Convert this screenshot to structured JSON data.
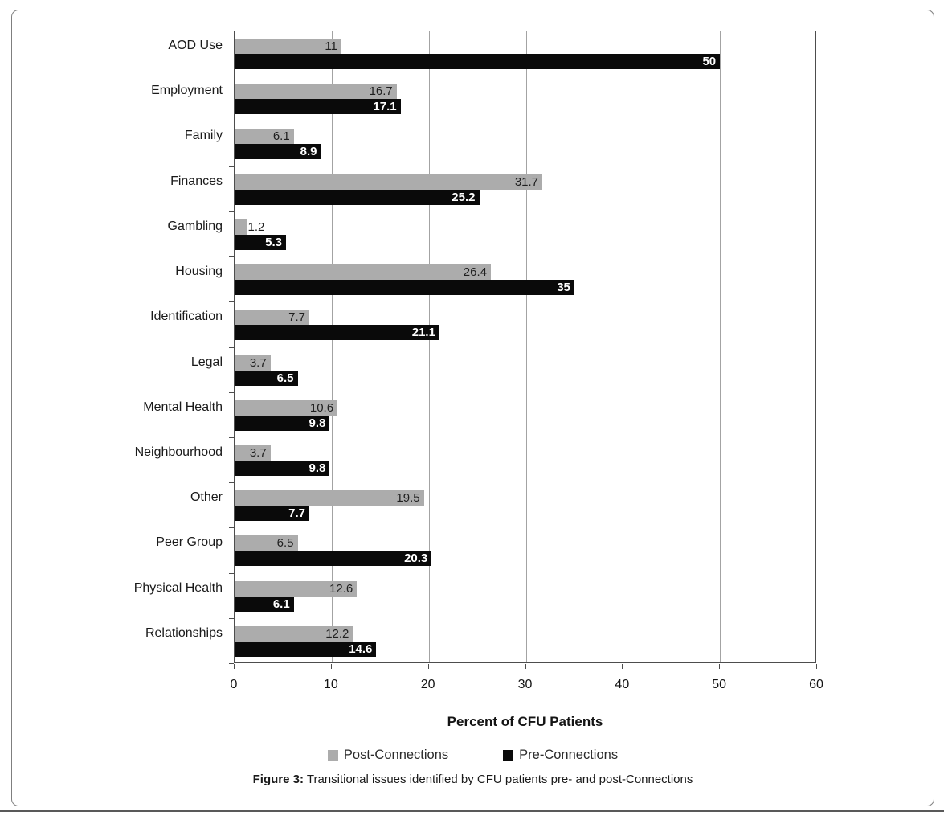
{
  "figure": {
    "caption_label": "Figure 3:",
    "caption_text": " Transitional issues identified by CFU patients pre- and post-Connections"
  },
  "chart_data": {
    "type": "bar",
    "orientation": "horizontal",
    "title": "",
    "xlabel": "Percent of CFU Patients",
    "ylabel": "",
    "xlim": [
      0,
      60
    ],
    "xticks": [
      0,
      10,
      20,
      30,
      40,
      50,
      60
    ],
    "grid": true,
    "legend_position": "bottom",
    "categories": [
      "AOD Use",
      "Employment",
      "Family",
      "Finances",
      "Gambling",
      "Housing",
      "Identification",
      "Legal",
      "Mental Health",
      "Neighbourhood",
      "Other",
      "Peer Group",
      "Physical Health",
      "Relationships"
    ],
    "series": [
      {
        "name": "Post-Connections",
        "color": "#acacac",
        "values": [
          11,
          16.7,
          6.1,
          31.7,
          1.2,
          26.4,
          7.7,
          3.7,
          10.6,
          3.7,
          19.5,
          6.5,
          12.6,
          12.2
        ]
      },
      {
        "name": "Pre-Connections",
        "color": "#0a0a0a",
        "values": [
          50,
          17.1,
          8.9,
          25.2,
          5.3,
          35,
          21.1,
          6.5,
          9.8,
          9.8,
          7.7,
          20.3,
          6.1,
          14.6
        ]
      }
    ]
  }
}
